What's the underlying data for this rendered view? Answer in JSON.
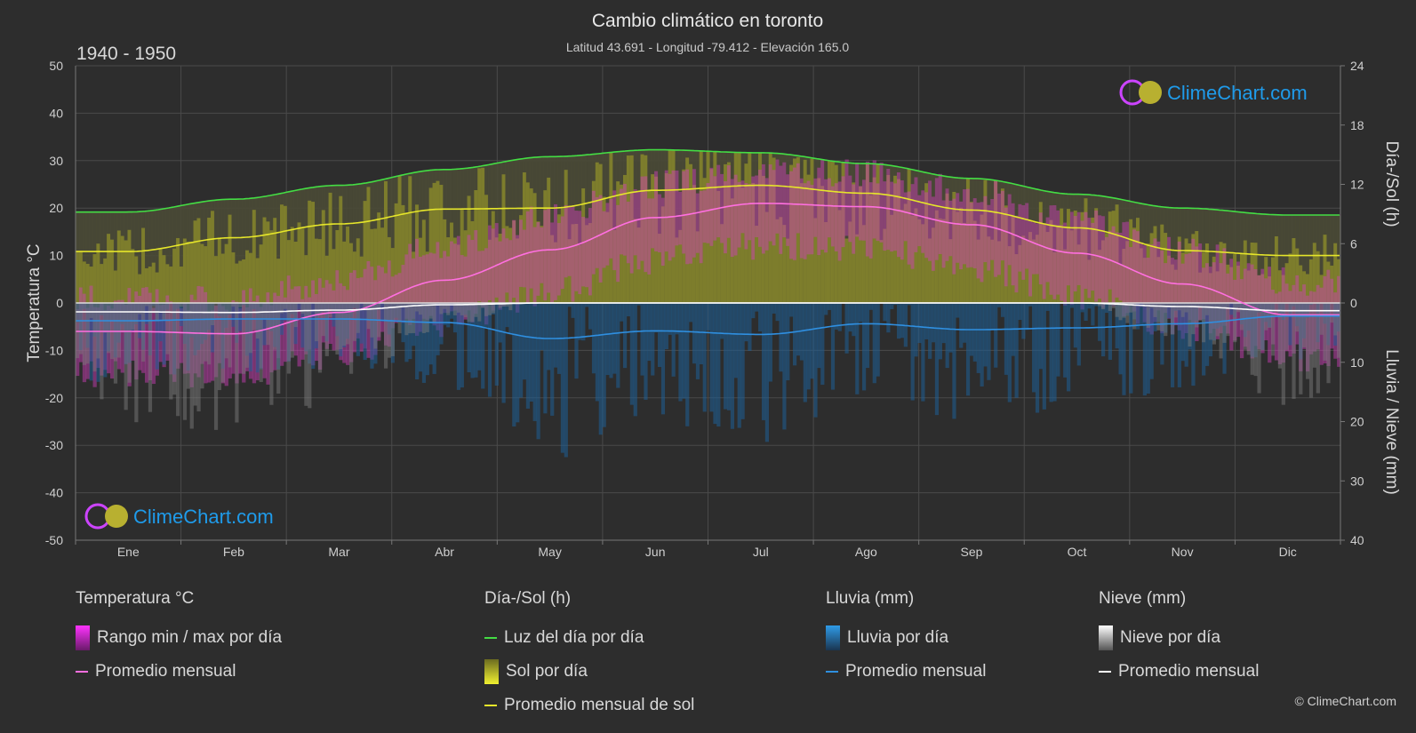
{
  "header": {
    "title": "Cambio climático en toronto",
    "subtitle": "Latitud 43.691 - Longitud -79.412 - Elevación 165.0",
    "period": "1940 - 1950"
  },
  "watermark": {
    "text": "ClimeChart.com"
  },
  "copyright": "© ClimeChart.com",
  "colors": {
    "background": "#2d2d2d",
    "daylight": "#44dd44",
    "sunshine_avg": "#e6e62a",
    "sunshine_fill": "#8f8f2a",
    "temp_avg": "#ff6fe0",
    "temp_range": "#d43fbf",
    "rain_avg": "#2f8fe0",
    "rain_bar": "#1e5f96",
    "snow_avg": "#ffffff",
    "snow_bar": "#7a7a7a",
    "brand": "#1f9bea"
  },
  "chart_data": {
    "type": "line",
    "x": [
      "Ene",
      "Feb",
      "Mar",
      "Abr",
      "May",
      "Jun",
      "Jul",
      "Ago",
      "Sep",
      "Oct",
      "Nov",
      "Dic"
    ],
    "axes": {
      "left": {
        "label": "Temperatura °C",
        "range": [
          -50,
          50
        ],
        "ticks": [
          "50",
          "40",
          "30",
          "20",
          "10",
          "0",
          "-10",
          "-20",
          "-30",
          "-40",
          "-50"
        ]
      },
      "right_top": {
        "label": "Día-/Sol (h)",
        "range": [
          0,
          24
        ],
        "ticks": [
          "24",
          "18",
          "12",
          "6",
          "0"
        ]
      },
      "right_bottom": {
        "label": "Lluvia / Nieve (mm)",
        "range": [
          0,
          40
        ],
        "ticks": [
          "0",
          "10",
          "20",
          "30",
          "40"
        ]
      }
    },
    "series": [
      {
        "name": "Luz del día por día",
        "axis": "hours",
        "values": [
          9.2,
          10.5,
          11.9,
          13.5,
          14.8,
          15.5,
          15.2,
          14.1,
          12.6,
          11.0,
          9.6,
          8.9
        ]
      },
      {
        "name": "Promedio mensual de sol",
        "axis": "hours",
        "values": [
          5.2,
          6.6,
          8.0,
          9.5,
          9.6,
          11.4,
          11.9,
          11.1,
          9.4,
          7.6,
          5.3,
          4.8
        ]
      },
      {
        "name": "Promedio mensual",
        "group": "Temperatura °C",
        "axis": "temperature",
        "values": [
          -6.0,
          -6.5,
          -2.0,
          4.8,
          11.2,
          18.0,
          21.0,
          20.3,
          16.5,
          10.5,
          4.0,
          -2.5
        ]
      },
      {
        "name": "Promedio mensual",
        "group": "Lluvia (mm)",
        "axis": "precip",
        "values": [
          3.0,
          2.7,
          2.7,
          3.3,
          6.0,
          4.7,
          5.3,
          3.5,
          4.5,
          4.2,
          3.5,
          2.2
        ]
      },
      {
        "name": "Promedio mensual",
        "group": "Nieve (mm)",
        "axis": "precip",
        "values": [
          1.5,
          1.6,
          1.2,
          0.3,
          0.0,
          0.0,
          0.0,
          0.0,
          0.0,
          0.0,
          0.6,
          1.3
        ]
      }
    ],
    "legend_groups": [
      {
        "title": "Temperatura °C",
        "items": [
          {
            "label": "Rango min / max por día",
            "kind": "temp_range"
          },
          {
            "label": "Promedio mensual",
            "kind": "temp_avg"
          }
        ]
      },
      {
        "title": "Día-/Sol (h)",
        "items": [
          {
            "label": "Luz del día por día",
            "kind": "daylight"
          },
          {
            "label": "Sol por día",
            "kind": "sunshine_fill"
          },
          {
            "label": "Promedio mensual de sol",
            "kind": "sunshine_avg"
          }
        ]
      },
      {
        "title": "Lluvia (mm)",
        "items": [
          {
            "label": "Lluvia por día",
            "kind": "rain_bar"
          },
          {
            "label": "Promedio mensual",
            "kind": "rain_avg"
          }
        ]
      },
      {
        "title": "Nieve (mm)",
        "items": [
          {
            "label": "Nieve por día",
            "kind": "snow_bar"
          },
          {
            "label": "Promedio mensual",
            "kind": "snow_avg"
          }
        ]
      }
    ]
  }
}
